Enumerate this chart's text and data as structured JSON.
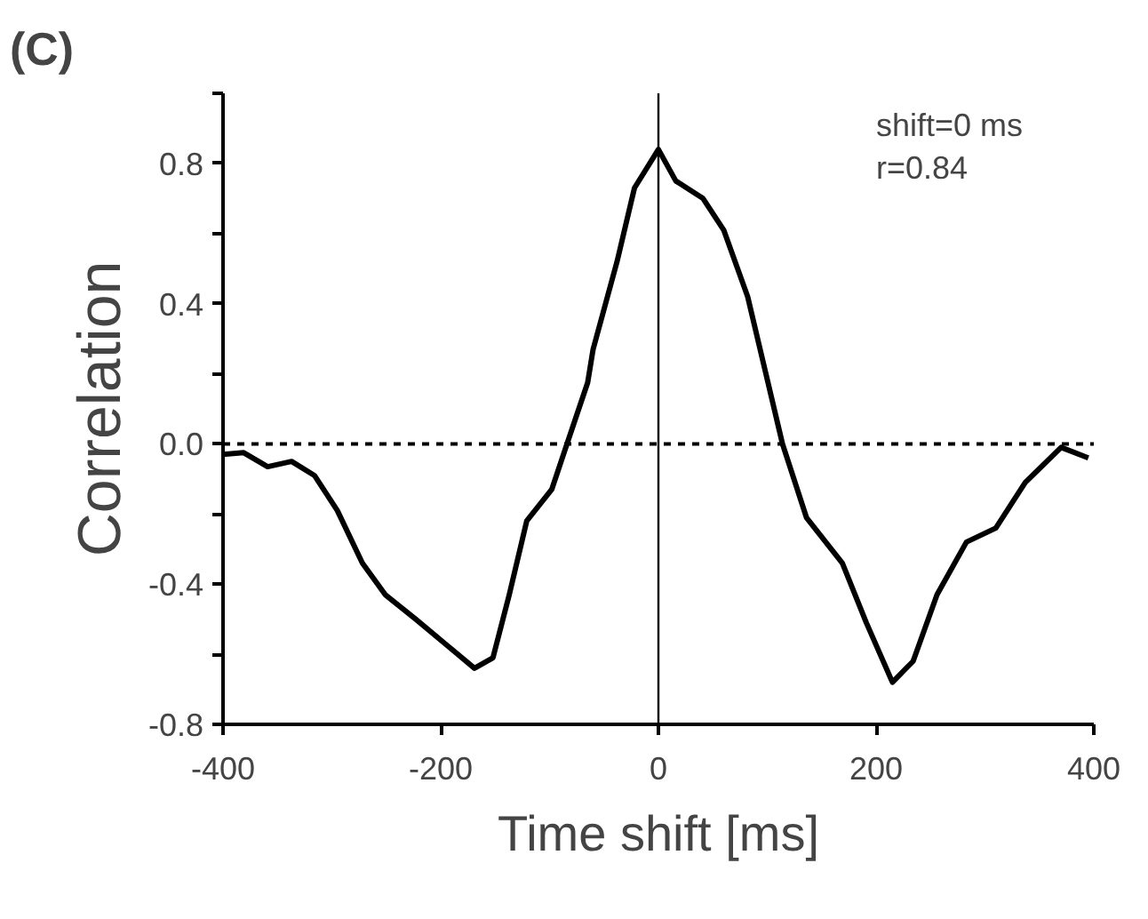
{
  "chart_data": {
    "type": "line",
    "title": "(C)",
    "xlabel": "Time shift [ms]",
    "ylabel": "Correlation",
    "annotations": [
      "shift=0 ms",
      "r=0.84"
    ],
    "xlim": [
      -400,
      400
    ],
    "xticks": [
      -400,
      -200,
      0,
      200,
      400
    ],
    "ylim": [
      -0.8,
      1.0
    ],
    "yticks": [
      {
        "value": -0.8,
        "label": "-0.8"
      },
      {
        "value": -0.6,
        "label": null
      },
      {
        "value": -0.4,
        "label": "-0.4"
      },
      {
        "value": -0.2,
        "label": null
      },
      {
        "value": 0.0,
        "label": "0.0"
      },
      {
        "value": 0.2,
        "label": null
      },
      {
        "value": 0.4,
        "label": "0.4"
      },
      {
        "value": 0.6,
        "label": null
      },
      {
        "value": 0.8,
        "label": "0.8"
      },
      {
        "value": 1.0,
        "label": null
      }
    ],
    "grid": false,
    "ref_lines": [
      {
        "axis": "y",
        "value": 0,
        "line_style": "dashed",
        "color": "#000000"
      },
      {
        "axis": "x",
        "value": 0,
        "line_style": "solid",
        "color": "#000000"
      }
    ],
    "series": [
      {
        "color": "#000000",
        "x": [
          -400,
          -381,
          -359,
          -337,
          -316,
          -295,
          -272,
          -251,
          -223,
          -196,
          -169,
          -152,
          -137,
          -121,
          -98,
          -84,
          -65,
          -60,
          -38,
          -22,
          0,
          16,
          41,
          60,
          82,
          98,
          114,
          136,
          169,
          191,
          215,
          234,
          256,
          283,
          310,
          337,
          370,
          395
        ],
        "values": [
          -0.03,
          -0.025,
          -0.065,
          -0.05,
          -0.09,
          -0.19,
          -0.34,
          -0.43,
          -0.5,
          -0.57,
          -0.64,
          -0.61,
          -0.43,
          -0.22,
          -0.13,
          0.0,
          0.175,
          0.27,
          0.52,
          0.73,
          0.84,
          0.75,
          0.7,
          0.61,
          0.42,
          0.21,
          0.0,
          -0.21,
          -0.34,
          -0.51,
          -0.68,
          -0.62,
          -0.43,
          -0.28,
          -0.24,
          -0.11,
          -0.01,
          -0.04
        ]
      }
    ]
  }
}
